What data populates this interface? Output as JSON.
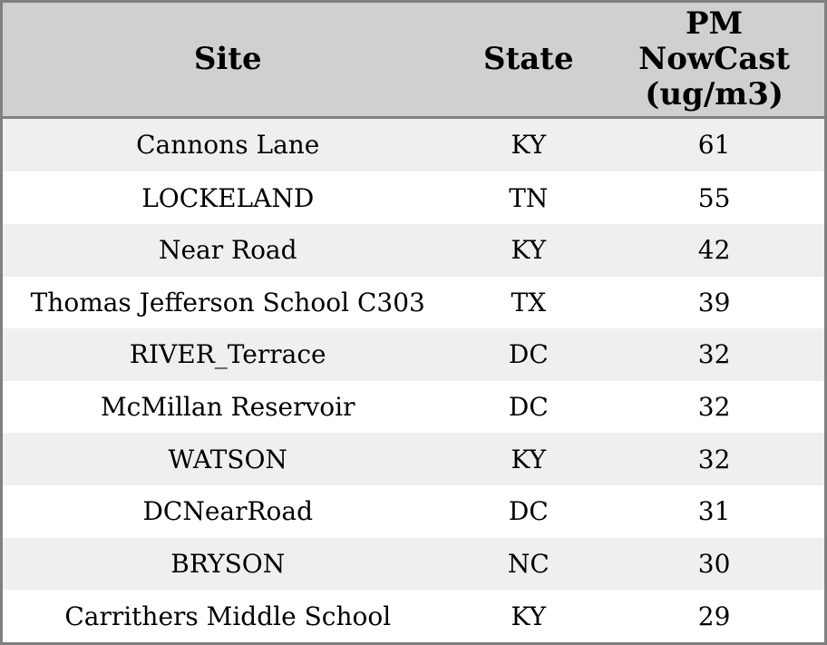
{
  "chart_data": {
    "type": "table",
    "columns": [
      "Site",
      "State",
      "PM NowCast (ug/m3)"
    ],
    "rows": [
      {
        "site": "Cannons Lane",
        "state": "KY",
        "value": 61
      },
      {
        "site": "LOCKELAND",
        "state": "TN",
        "value": 55
      },
      {
        "site": "Near Road",
        "state": "KY",
        "value": 42
      },
      {
        "site": "Thomas Jefferson School C303",
        "state": "TX",
        "value": 39
      },
      {
        "site": "RIVER_Terrace",
        "state": "DC",
        "value": 32
      },
      {
        "site": "McMillan Reservoir",
        "state": "DC",
        "value": 32
      },
      {
        "site": "WATSON",
        "state": "KY",
        "value": 32
      },
      {
        "site": "DCNearRoad",
        "state": "DC",
        "value": 31
      },
      {
        "site": "BRYSON",
        "state": "NC",
        "value": 30
      },
      {
        "site": "Carrithers Middle School",
        "state": "KY",
        "value": 29
      }
    ]
  },
  "colors": {
    "border": "#808080",
    "header_bg": "#d0d0d0",
    "row_alt_bg": "#efefef",
    "row_bg": "#ffffff",
    "text": "#000000"
  }
}
